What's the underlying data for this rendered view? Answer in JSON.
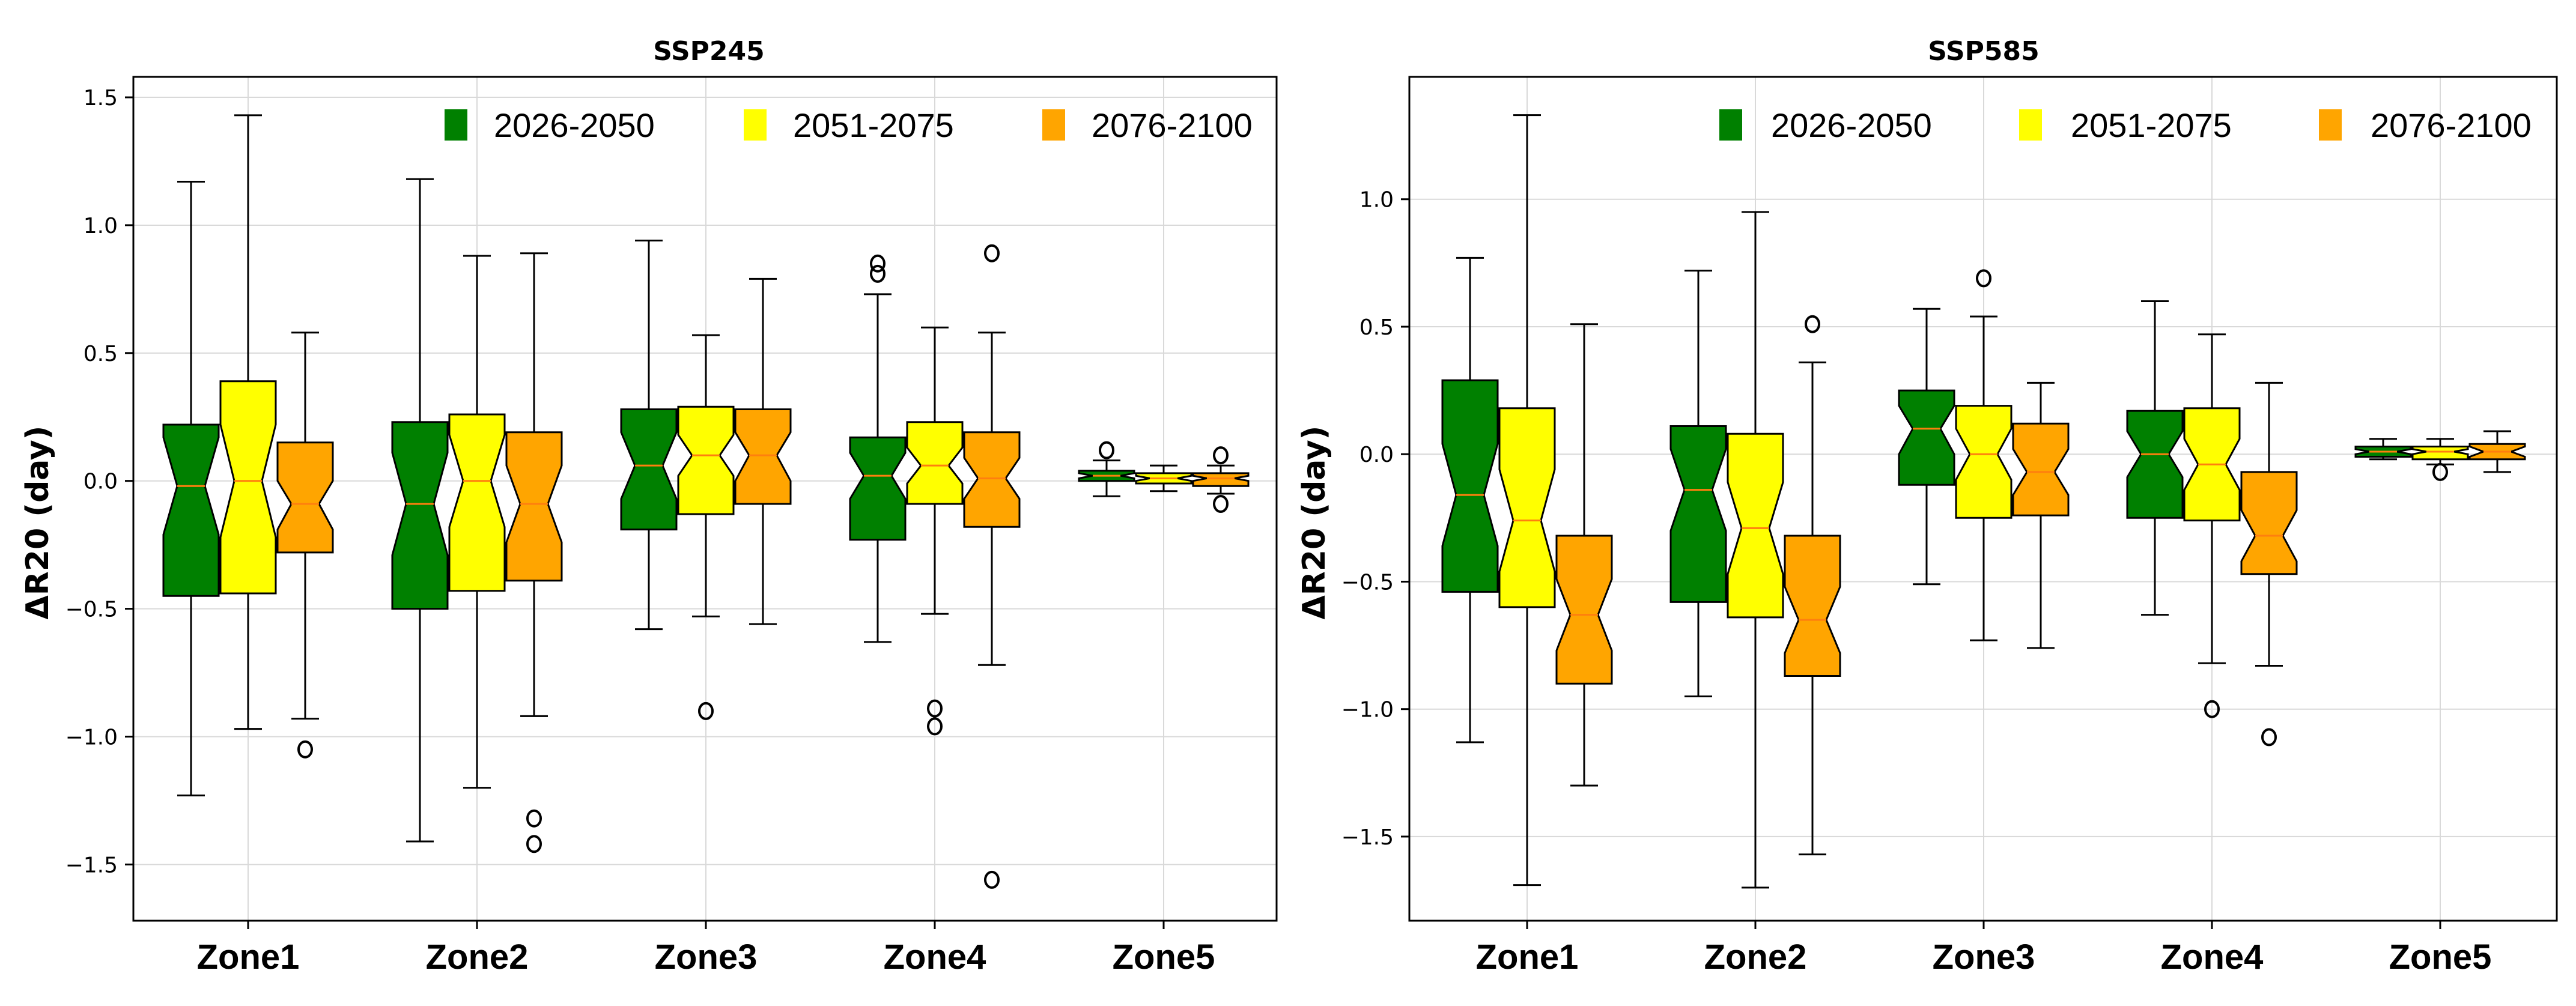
{
  "chart_data": [
    {
      "type": "box",
      "title": "SSP245",
      "ylabel": "ΔR20 (day)",
      "ylim": [
        -1.72,
        1.58
      ],
      "yticks": [
        1.5,
        1.0,
        0.5,
        0.0,
        -0.5,
        -1.0,
        -1.5
      ],
      "ytick_labels": [
        "1.5",
        "1.0",
        "0.5",
        "0.0",
        "−0.5",
        "−1.0",
        "−1.5"
      ],
      "categories": [
        "Zone1",
        "Zone2",
        "Zone3",
        "Zone4",
        "Zone5"
      ],
      "series": [
        {
          "name": "2026-2050",
          "color": "#008000",
          "boxes": [
            {
              "q1": -0.45,
              "median": -0.02,
              "q3": 0.22,
              "whislo": -1.23,
              "whishi": 1.17,
              "notch_lo": -0.21,
              "notch_hi": 0.17,
              "fliers": []
            },
            {
              "q1": -0.5,
              "median": -0.09,
              "q3": 0.23,
              "whislo": -1.41,
              "whishi": 1.18,
              "notch_lo": -0.29,
              "notch_hi": 0.11,
              "fliers": []
            },
            {
              "q1": -0.19,
              "median": 0.06,
              "q3": 0.28,
              "whislo": -0.58,
              "whishi": 0.94,
              "notch_lo": -0.07,
              "notch_hi": 0.19,
              "fliers": []
            },
            {
              "q1": -0.23,
              "median": 0.02,
              "q3": 0.17,
              "whislo": -0.63,
              "whishi": 0.73,
              "notch_lo": -0.07,
              "notch_hi": 0.11,
              "fliers": [
                0.85,
                0.81
              ]
            },
            {
              "q1": 0.0,
              "median": 0.02,
              "q3": 0.04,
              "whislo": -0.06,
              "whishi": 0.08,
              "notch_lo": 0.01,
              "notch_hi": 0.03,
              "fliers": [
                0.12
              ]
            }
          ]
        },
        {
          "name": "2051-2075",
          "color": "#ffff00",
          "boxes": [
            {
              "q1": -0.44,
              "median": 0.0,
              "q3": 0.39,
              "whislo": -0.97,
              "whishi": 1.43,
              "notch_lo": -0.22,
              "notch_hi": 0.22,
              "fliers": []
            },
            {
              "q1": -0.43,
              "median": 0.0,
              "q3": 0.26,
              "whislo": -1.2,
              "whishi": 0.88,
              "notch_lo": -0.18,
              "notch_hi": 0.18,
              "fliers": []
            },
            {
              "q1": -0.13,
              "median": 0.1,
              "q3": 0.29,
              "whislo": -0.53,
              "whishi": 0.57,
              "notch_lo": 0.02,
              "notch_hi": 0.18,
              "fliers": [
                -0.9
              ]
            },
            {
              "q1": -0.09,
              "median": 0.06,
              "q3": 0.23,
              "whislo": -0.52,
              "whishi": 0.6,
              "notch_lo": -0.01,
              "notch_hi": 0.13,
              "fliers": [
                -0.89,
                -0.96
              ]
            },
            {
              "q1": -0.01,
              "median": 0.01,
              "q3": 0.03,
              "whislo": -0.04,
              "whishi": 0.06,
              "notch_lo": 0.0,
              "notch_hi": 0.02,
              "fliers": []
            }
          ]
        },
        {
          "name": "2076-2100",
          "color": "#ffa500",
          "boxes": [
            {
              "q1": -0.28,
              "median": -0.09,
              "q3": 0.15,
              "whislo": -0.93,
              "whishi": 0.58,
              "notch_lo": -0.19,
              "notch_hi": 0.0,
              "fliers": [
                -1.05
              ]
            },
            {
              "q1": -0.39,
              "median": -0.09,
              "q3": 0.19,
              "whislo": -0.92,
              "whishi": 0.89,
              "notch_lo": -0.24,
              "notch_hi": 0.06,
              "fliers": [
                -1.32,
                -1.42
              ]
            },
            {
              "q1": -0.09,
              "median": 0.1,
              "q3": 0.28,
              "whislo": -0.56,
              "whishi": 0.79,
              "notch_lo": 0.0,
              "notch_hi": 0.19,
              "fliers": []
            },
            {
              "q1": -0.18,
              "median": 0.01,
              "q3": 0.19,
              "whislo": -0.72,
              "whishi": 0.58,
              "notch_lo": -0.07,
              "notch_hi": 0.09,
              "fliers": [
                0.89,
                -1.56
              ]
            },
            {
              "q1": -0.02,
              "median": 0.01,
              "q3": 0.03,
              "whislo": -0.05,
              "whishi": 0.06,
              "notch_lo": 0.0,
              "notch_hi": 0.02,
              "fliers": [
                0.1,
                -0.09
              ]
            }
          ]
        }
      ]
    },
    {
      "type": "box",
      "title": "SSP585",
      "ylabel": "ΔR20 (day)",
      "ylim": [
        -1.83,
        1.48
      ],
      "yticks": [
        1.0,
        0.5,
        0.0,
        -0.5,
        -1.0,
        -1.5
      ],
      "ytick_labels": [
        "1.0",
        "0.5",
        "0.0",
        "−0.5",
        "−1.0",
        "−1.5"
      ],
      "categories": [
        "Zone1",
        "Zone2",
        "Zone3",
        "Zone4",
        "Zone5"
      ],
      "series": [
        {
          "name": "2026-2050",
          "color": "#008000",
          "boxes": [
            {
              "q1": -0.54,
              "median": -0.16,
              "q3": 0.29,
              "whislo": -1.13,
              "whishi": 0.77,
              "notch_lo": -0.36,
              "notch_hi": 0.04,
              "fliers": []
            },
            {
              "q1": -0.58,
              "median": -0.14,
              "q3": 0.11,
              "whislo": -0.95,
              "whishi": 0.72,
              "notch_lo": -0.3,
              "notch_hi": 0.02,
              "fliers": []
            },
            {
              "q1": -0.12,
              "median": 0.1,
              "q3": 0.25,
              "whislo": -0.51,
              "whishi": 0.57,
              "notch_lo": 0.0,
              "notch_hi": 0.19,
              "fliers": []
            },
            {
              "q1": -0.25,
              "median": 0.0,
              "q3": 0.17,
              "whislo": -0.63,
              "whishi": 0.6,
              "notch_lo": -0.09,
              "notch_hi": 0.09,
              "fliers": []
            },
            {
              "q1": -0.01,
              "median": 0.01,
              "q3": 0.03,
              "whislo": -0.02,
              "whishi": 0.06,
              "notch_lo": 0.0,
              "notch_hi": 0.02,
              "fliers": []
            }
          ]
        },
        {
          "name": "2051-2075",
          "color": "#ffff00",
          "boxes": [
            {
              "q1": -0.6,
              "median": -0.26,
              "q3": 0.18,
              "whislo": -1.69,
              "whishi": 1.33,
              "notch_lo": -0.46,
              "notch_hi": -0.06,
              "fliers": []
            },
            {
              "q1": -0.64,
              "median": -0.29,
              "q3": 0.08,
              "whislo": -1.7,
              "whishi": 0.95,
              "notch_lo": -0.47,
              "notch_hi": -0.11,
              "fliers": []
            },
            {
              "q1": -0.25,
              "median": 0.0,
              "q3": 0.19,
              "whislo": -0.73,
              "whishi": 0.54,
              "notch_lo": -0.1,
              "notch_hi": 0.1,
              "fliers": [
                0.69
              ]
            },
            {
              "q1": -0.26,
              "median": -0.04,
              "q3": 0.18,
              "whislo": -0.82,
              "whishi": 0.47,
              "notch_lo": -0.14,
              "notch_hi": 0.06,
              "fliers": [
                -1.0
              ]
            },
            {
              "q1": -0.02,
              "median": 0.01,
              "q3": 0.03,
              "whislo": -0.04,
              "whishi": 0.06,
              "notch_lo": 0.0,
              "notch_hi": 0.02,
              "fliers": [
                -0.07
              ]
            }
          ]
        },
        {
          "name": "2076-2100",
          "color": "#ffa500",
          "boxes": [
            {
              "q1": -0.9,
              "median": -0.63,
              "q3": -0.32,
              "whislo": -1.3,
              "whishi": 0.51,
              "notch_lo": -0.77,
              "notch_hi": -0.49,
              "fliers": []
            },
            {
              "q1": -0.87,
              "median": -0.65,
              "q3": -0.32,
              "whislo": -1.57,
              "whishi": 0.36,
              "notch_lo": -0.78,
              "notch_hi": -0.52,
              "fliers": [
                0.51
              ]
            },
            {
              "q1": -0.24,
              "median": -0.07,
              "q3": 0.12,
              "whislo": -0.76,
              "whishi": 0.28,
              "notch_lo": -0.16,
              "notch_hi": 0.02,
              "fliers": []
            },
            {
              "q1": -0.47,
              "median": -0.32,
              "q3": -0.07,
              "whislo": -0.83,
              "whishi": 0.28,
              "notch_lo": -0.42,
              "notch_hi": -0.22,
              "fliers": [
                -1.11
              ]
            },
            {
              "q1": -0.02,
              "median": 0.01,
              "q3": 0.04,
              "whislo": -0.07,
              "whishi": 0.09,
              "notch_lo": -0.01,
              "notch_hi": 0.03,
              "fliers": []
            }
          ]
        }
      ]
    }
  ]
}
